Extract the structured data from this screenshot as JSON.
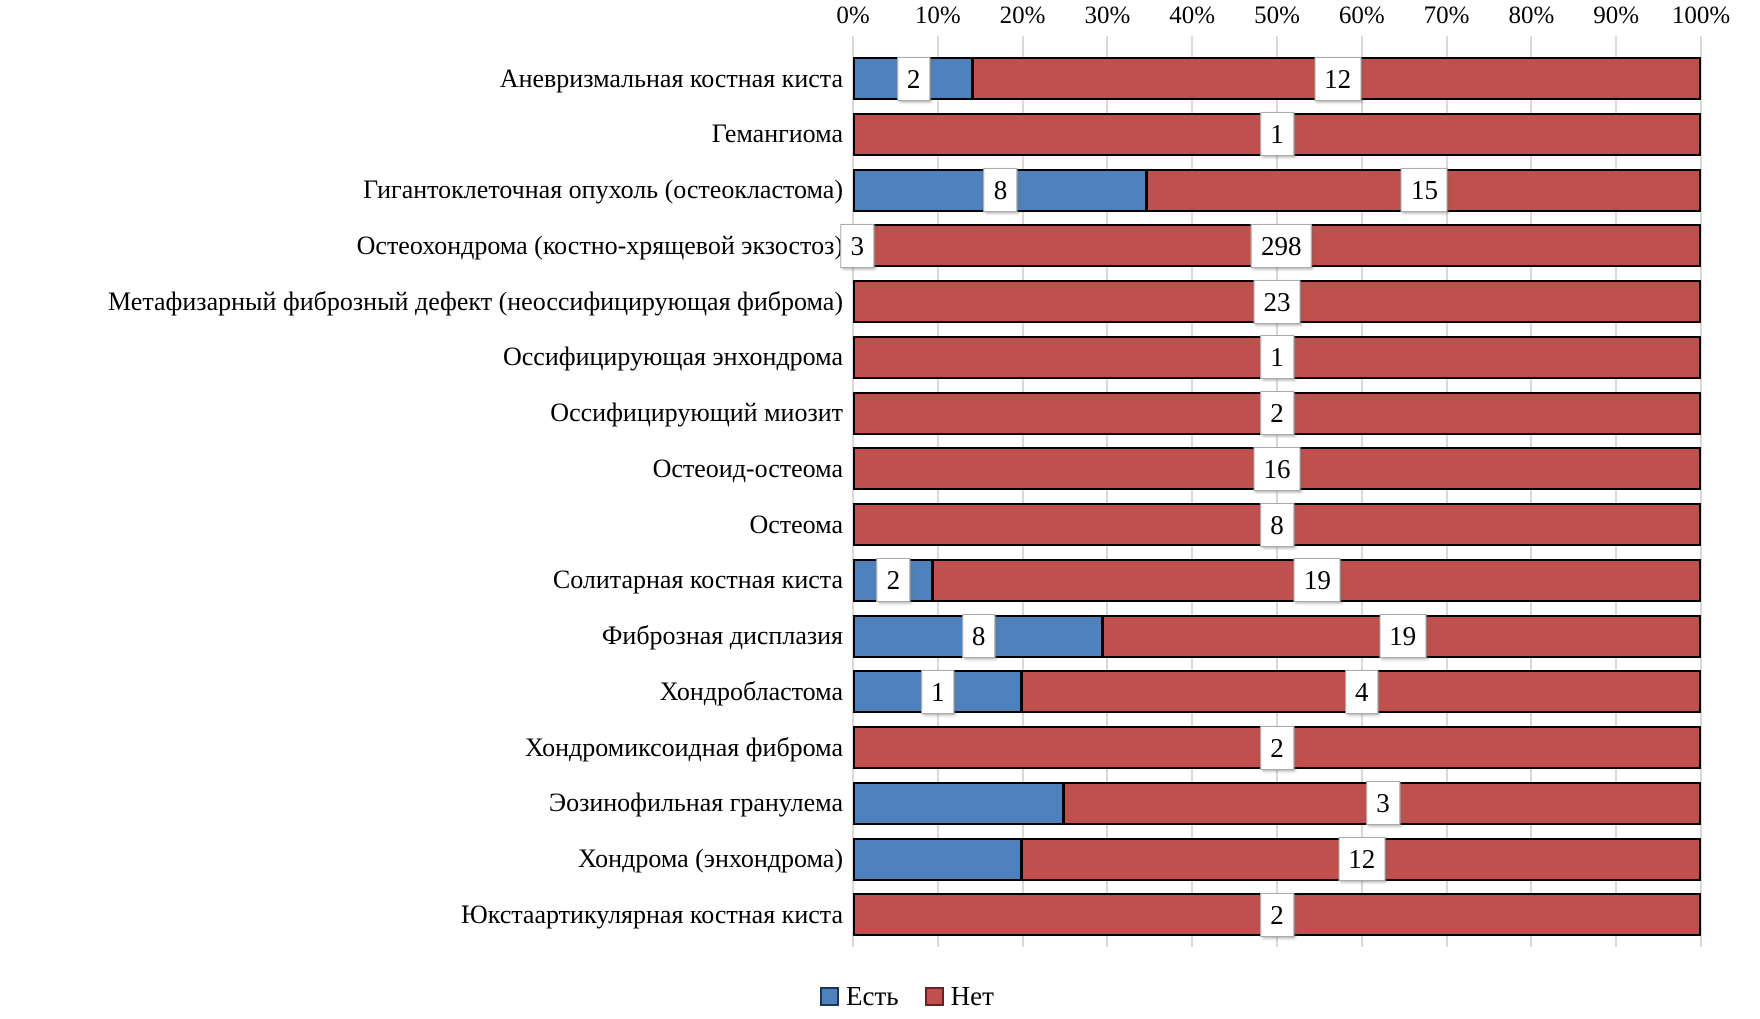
{
  "chart_data": {
    "type": "bar",
    "stacked": "100%",
    "orientation": "horizontal",
    "title": "",
    "x_axis": {
      "position": "top",
      "tick_labels": [
        "0%",
        "10%",
        "20%",
        "30%",
        "40%",
        "50%",
        "60%",
        "70%",
        "80%",
        "90%",
        "100%"
      ],
      "range": [
        0,
        100
      ],
      "gridlines": true,
      "gridline_color": "#d9d9d9"
    },
    "categories": [
      "Аневризмальная костная киста",
      "Гемангиома",
      "Гигантоклеточная опухоль (остеокластома)",
      "Остеохондрома (костно-хрящевой экзостоз)",
      "Метафизарный фиброзный дефект (неоссифицирующая фиброма)",
      "Оссифицирующая энхондрома",
      "Оссифицирующий миозит",
      "Остеоид-остеома",
      "Остеома",
      "Солитарная костная киста",
      "Фиброзная дисплазия",
      "Хондробластома",
      "Хондромиксоидная фиброма",
      "Эозинофильная гранулема",
      "Хондрома (энхондрома)",
      "Юкстаартикулярная костная киста"
    ],
    "series": [
      {
        "name": "Есть",
        "color": "#4f81bd",
        "values": [
          2,
          0,
          8,
          3,
          0,
          0,
          0,
          0,
          0,
          2,
          8,
          1,
          0,
          1,
          3,
          0
        ],
        "labels_shown": [
          true,
          false,
          true,
          true,
          false,
          false,
          false,
          false,
          false,
          true,
          true,
          true,
          false,
          false,
          false,
          false
        ]
      },
      {
        "name": "Нет",
        "color": "#c0504d",
        "values": [
          12,
          1,
          15,
          298,
          23,
          1,
          2,
          16,
          8,
          19,
          19,
          4,
          2,
          3,
          12,
          2
        ],
        "labels_shown": [
          true,
          true,
          true,
          true,
          true,
          true,
          true,
          true,
          true,
          true,
          true,
          true,
          true,
          true,
          true,
          true
        ]
      }
    ],
    "legend": {
      "position": "bottom",
      "items": [
        "Есть",
        "Нет"
      ]
    }
  }
}
